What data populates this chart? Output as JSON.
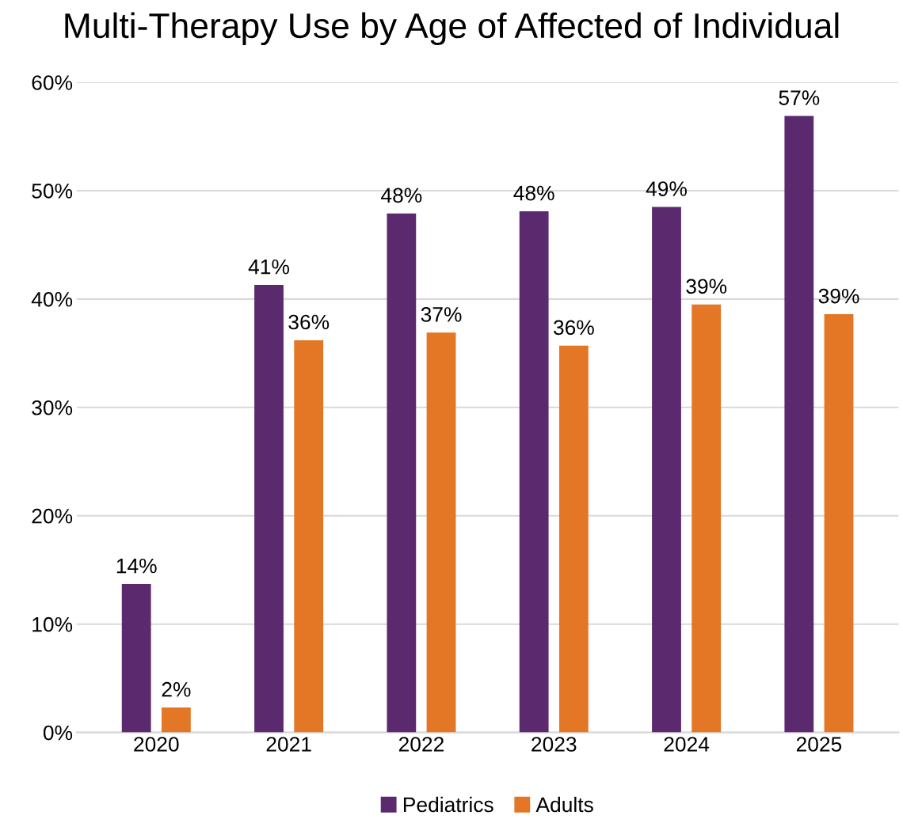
{
  "chart_data": {
    "type": "bar",
    "title": "Multi-Therapy Use by Age of Affected of Individual",
    "categories": [
      "2020",
      "2021",
      "2022",
      "2023",
      "2024",
      "2025"
    ],
    "series": [
      {
        "name": "Pediatrics",
        "color": "#5b2a6e",
        "values": [
          13.7,
          41.3,
          47.9,
          48.1,
          48.5,
          56.9
        ],
        "value_labels": [
          "14%",
          "41%",
          "48%",
          "48%",
          "49%",
          "57%"
        ]
      },
      {
        "name": "Adults",
        "color": "#e47726",
        "values": [
          2.3,
          36.2,
          36.9,
          35.7,
          39.5,
          38.6
        ],
        "value_labels": [
          "2%",
          "36%",
          "37%",
          "36%",
          "39%",
          "39%"
        ]
      }
    ],
    "ylim": [
      0,
      60
    ],
    "yticks": [
      {
        "value": 0,
        "label": "0%"
      },
      {
        "value": 10,
        "label": "10%"
      },
      {
        "value": 20,
        "label": "20%"
      },
      {
        "value": 30,
        "label": "30%"
      },
      {
        "value": 40,
        "label": "40%"
      },
      {
        "value": 50,
        "label": "50%"
      },
      {
        "value": 60,
        "label": "60%"
      }
    ],
    "grid": "y",
    "legend": "bottom"
  }
}
